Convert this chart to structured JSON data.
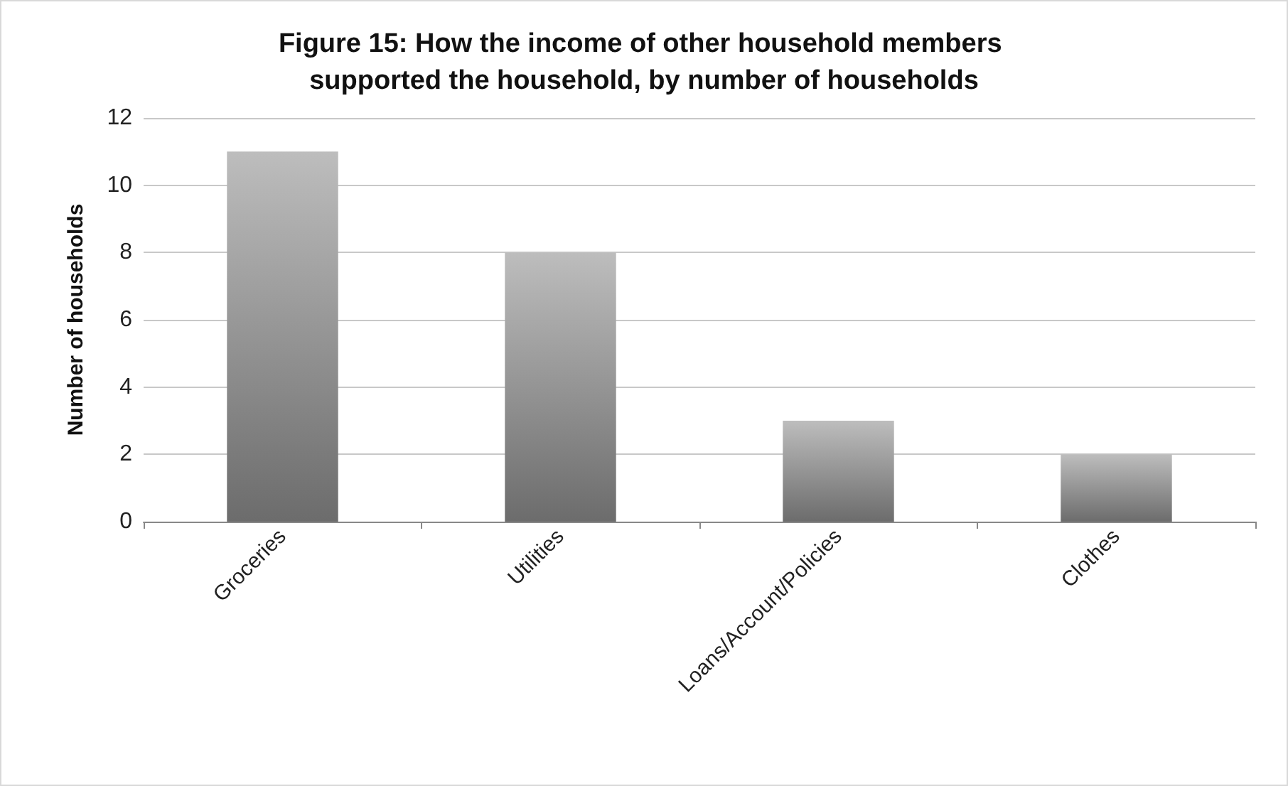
{
  "chart_data": {
    "type": "bar",
    "title": "Figure 15: How the income of other household members supported the household, by number of households",
    "ylabel": "Number of households",
    "categories": [
      "Groceries",
      "Utilities",
      "Loans/Account/Policies",
      "Clothes"
    ],
    "values": [
      11,
      8,
      3,
      2
    ],
    "color": "#9a9a9a",
    "ylim": [
      0,
      12
    ],
    "yticks": [
      0,
      2,
      4,
      6,
      8,
      10,
      12
    ],
    "grid": "y"
  }
}
